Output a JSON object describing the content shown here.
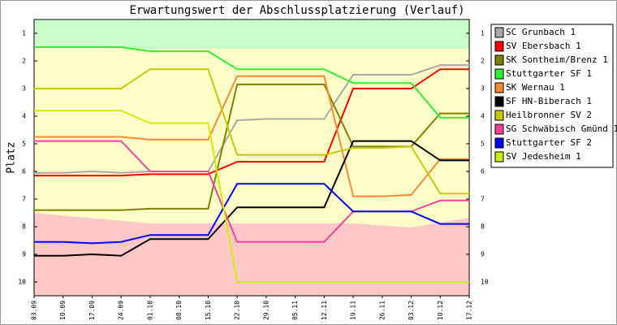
{
  "chart_data": {
    "type": "line",
    "title": "Erwartungswert der Abschlussplatzierung (Verlauf)",
    "y_label": "Platz",
    "y_inverted": true,
    "categories": [
      "03.09",
      "10.09",
      "17.09",
      "24.09",
      "01.10",
      "08.10",
      "15.10",
      "22.10",
      "29.10",
      "05.11",
      "12.11",
      "19.11",
      "26.11",
      "03.12",
      "10.12",
      "17.12"
    ],
    "ylim": [
      0.5,
      10.5
    ],
    "yticks": [
      1,
      2,
      3,
      4,
      5,
      6,
      7,
      8,
      9,
      10
    ],
    "series": [
      {
        "name": "SC Grunbach 1",
        "color": "#a8a8a8",
        "values": [
          6.05,
          6.05,
          6.0,
          6.05,
          6.0,
          6.0,
          6.0,
          4.15,
          4.1,
          4.1,
          4.1,
          2.5,
          2.5,
          2.5,
          2.15,
          2.15
        ]
      },
      {
        "name": "SV Ebersbach 1",
        "color": "#ff0000",
        "values": [
          6.15,
          6.15,
          6.15,
          6.15,
          6.1,
          6.1,
          6.1,
          5.65,
          5.65,
          5.65,
          5.65,
          3.0,
          3.0,
          3.0,
          2.3,
          2.3
        ]
      },
      {
        "name": "SK Sontheim/Brenz 1",
        "color": "#808000",
        "values": [
          7.4,
          7.4,
          7.4,
          7.4,
          7.35,
          7.35,
          7.35,
          2.85,
          2.85,
          2.85,
          2.85,
          5.1,
          5.1,
          5.1,
          3.9,
          3.9
        ]
      },
      {
        "name": "Stuttgarter SF 1",
        "color": "#33ee33",
        "values": [
          1.5,
          1.5,
          1.5,
          1.5,
          1.65,
          1.65,
          1.65,
          2.3,
          2.3,
          2.3,
          2.3,
          2.8,
          2.8,
          2.8,
          4.05,
          4.05
        ]
      },
      {
        "name": "SK Wernau 1",
        "color": "#ff8830",
        "values": [
          4.75,
          4.75,
          4.75,
          4.75,
          4.85,
          4.85,
          4.85,
          2.55,
          2.55,
          2.55,
          2.55,
          6.9,
          6.9,
          6.85,
          5.55,
          5.55
        ]
      },
      {
        "name": "SF HN-Biberach 1",
        "color": "#000000",
        "values": [
          9.05,
          9.05,
          9.0,
          9.05,
          8.45,
          8.45,
          8.45,
          7.3,
          7.3,
          7.3,
          7.3,
          4.9,
          4.9,
          4.9,
          5.6,
          5.6
        ]
      },
      {
        "name": "Heilbronner SV 2",
        "color": "#c8c800",
        "values": [
          3.0,
          3.0,
          3.0,
          3.0,
          2.3,
          2.3,
          2.3,
          5.4,
          5.4,
          5.4,
          5.4,
          5.15,
          5.15,
          5.1,
          6.8,
          6.8
        ]
      },
      {
        "name": "SG Schwäbisch Gmünd 1",
        "color": "#ff40a0",
        "values": [
          4.9,
          4.9,
          4.9,
          4.9,
          6.0,
          6.0,
          6.0,
          8.55,
          8.55,
          8.55,
          8.55,
          7.45,
          7.45,
          7.45,
          7.05,
          7.05
        ]
      },
      {
        "name": "Stuttgarter SF 2",
        "color": "#0000ff",
        "values": [
          8.55,
          8.55,
          8.6,
          8.55,
          8.3,
          8.3,
          8.3,
          6.45,
          6.45,
          6.45,
          6.45,
          7.45,
          7.45,
          7.45,
          7.9,
          7.9
        ]
      },
      {
        "name": "SV Jedesheim 1",
        "color": "#ccf000",
        "values": [
          3.8,
          3.8,
          3.8,
          3.8,
          4.25,
          4.25,
          4.25,
          10,
          10,
          10,
          10,
          10,
          10,
          10,
          10,
          10
        ]
      }
    ]
  }
}
